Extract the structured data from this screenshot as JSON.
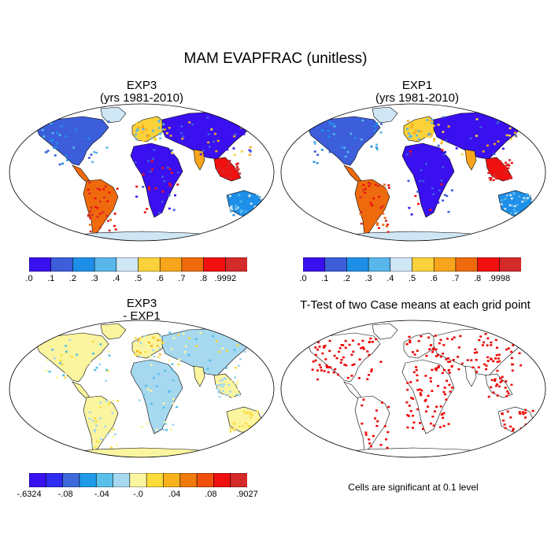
{
  "figure": {
    "title": "MAM EVAPFRAC (unitless)"
  },
  "panels": [
    {
      "id": "exp3",
      "title_line1": "EXP3",
      "title_line2": "(yrs 1981-2010)",
      "colorbar_labels": [
        ".0",
        ".1",
        ".2",
        ".3",
        ".4",
        ".5",
        ".6",
        ".7",
        ".8",
        ".9992"
      ],
      "colorbar_colors": [
        "#3a10f0",
        "#3c5edb",
        "#1e8fe8",
        "#58b6ea",
        "#cfe6f5",
        "#fbd23a",
        "#f7a51c",
        "#ef6a0d",
        "#f11010",
        "#d42a2a"
      ]
    },
    {
      "id": "exp1",
      "title_line1": "EXP1",
      "title_line2": "(yrs 1981-2010)",
      "colorbar_labels": [
        ".0",
        ".1",
        ".2",
        ".3",
        ".4",
        ".5",
        ".6",
        ".7",
        ".8",
        ".9998"
      ],
      "colorbar_colors": [
        "#3a10f0",
        "#3c5edb",
        "#1e8fe8",
        "#58b6ea",
        "#cfe6f5",
        "#fbd23a",
        "#f7a51c",
        "#ef6a0d",
        "#f11010",
        "#d42a2a"
      ]
    },
    {
      "id": "diff",
      "title_line1": "EXP3",
      "title_line2": "- EXP1",
      "colorbar_labels": [
        "-.6324",
        "-.08",
        "-.04",
        "-.0",
        ".04",
        ".08",
        ".9027"
      ],
      "colorbar_colors": [
        "#3a10f0",
        "#2d2cf0",
        "#3c6adb",
        "#1e9ae8",
        "#58c0ea",
        "#a6d8f0",
        "#fbf5a0",
        "#fbdc3a",
        "#f7b21c",
        "#ef7a0d",
        "#f1500a",
        "#f11010",
        "#d42a2a"
      ]
    },
    {
      "id": "ttest",
      "title_line1": "T-Test of two Case means at each grid point",
      "note": "Cells are significant at 0.1 level",
      "significance_color": "#ee0000"
    }
  ]
}
